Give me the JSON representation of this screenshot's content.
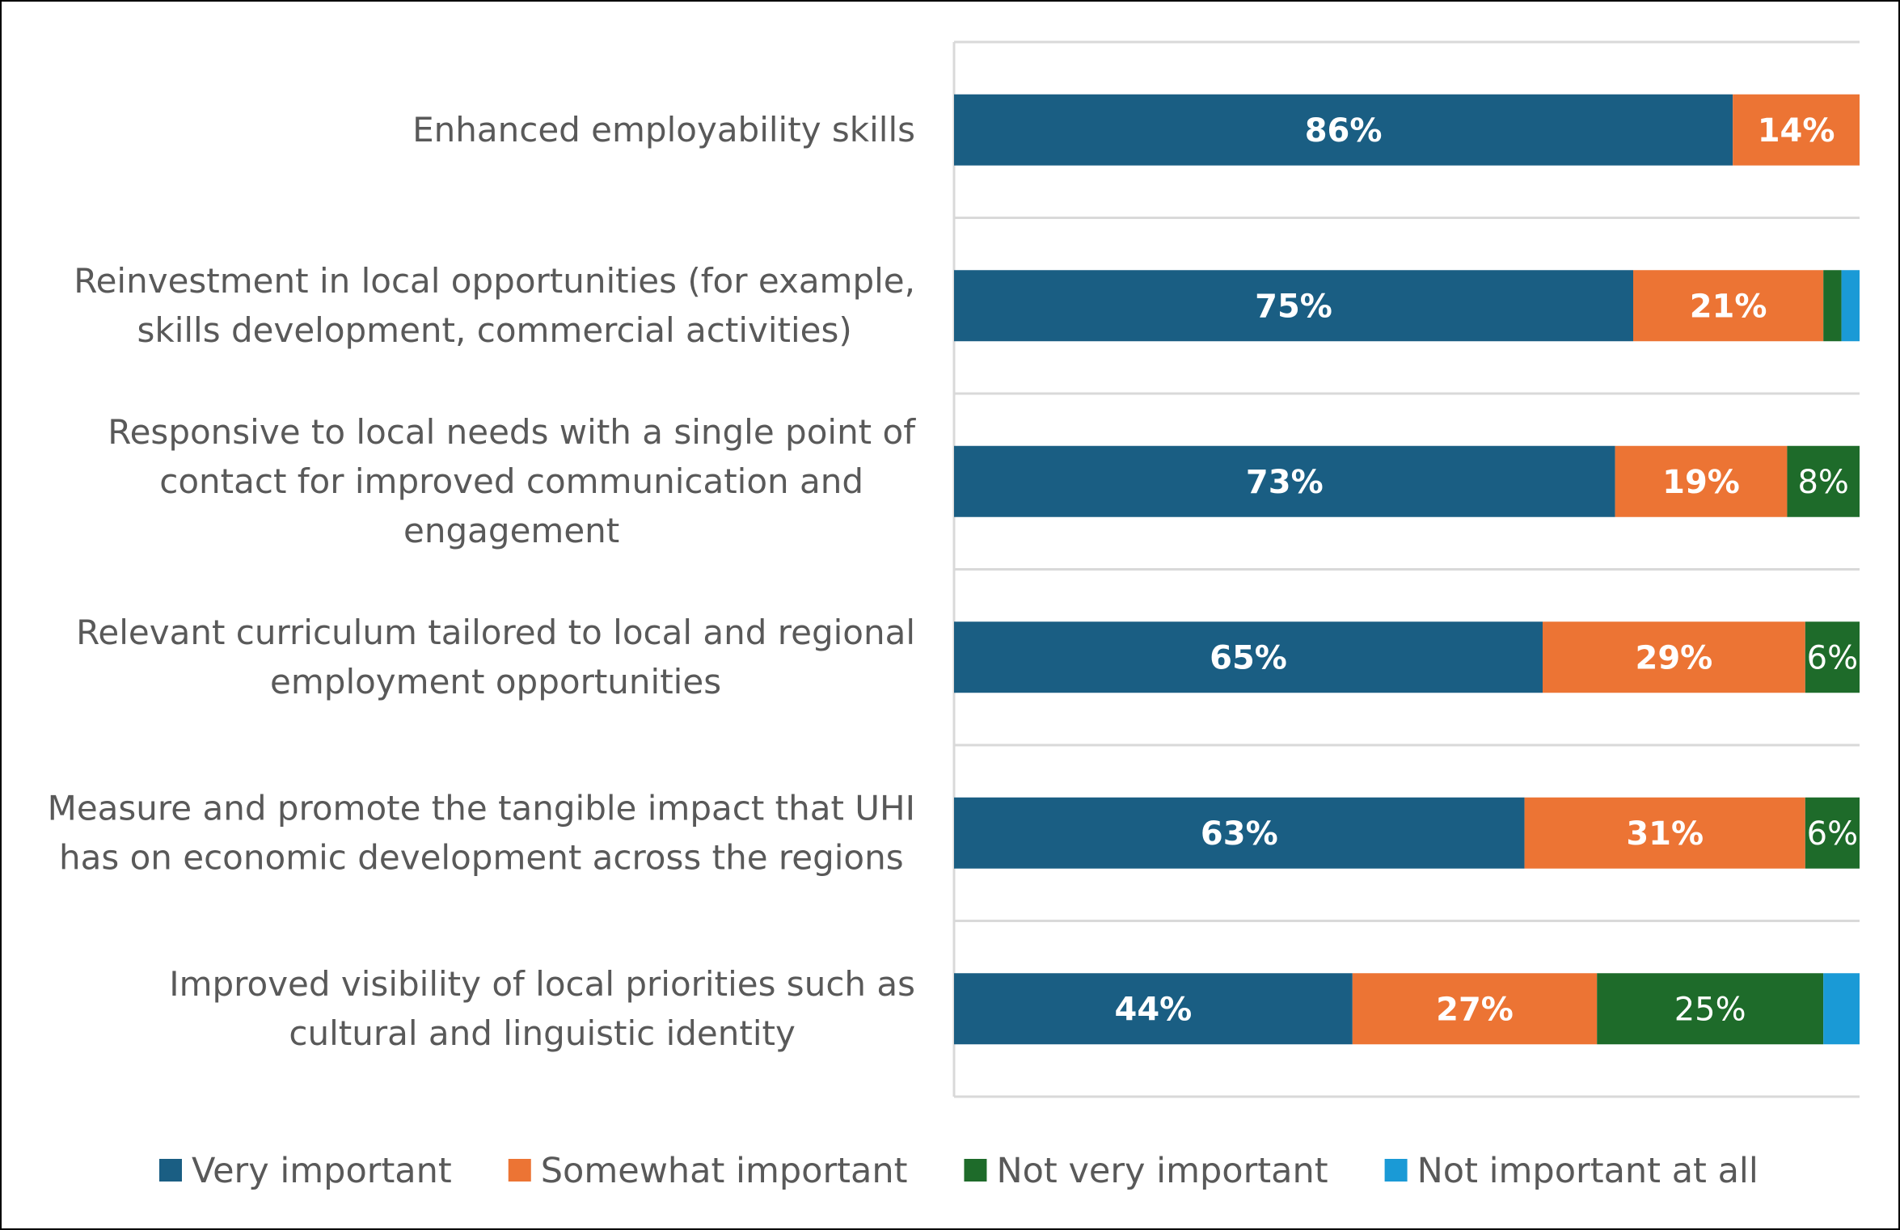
{
  "chart_data": {
    "type": "bar",
    "orientation": "horizontal",
    "stacked": true,
    "title": "",
    "xlabel": "",
    "ylabel": "",
    "xlim": [
      0,
      100
    ],
    "grid": "horizontal separators between categories",
    "legend_position": "bottom",
    "categories": [
      {
        "lines": [
          "Enhanced employability skills"
        ]
      },
      {
        "lines": [
          "Reinvestment in local opportunities (for example,",
          "skills development, commercial activities)"
        ]
      },
      {
        "lines": [
          "Responsive to local needs with a single point of",
          "contact for improved communication and",
          "engagement"
        ]
      },
      {
        "lines": [
          "Relevant curriculum tailored to local and regional",
          "employment opportunities"
        ]
      },
      {
        "lines": [
          "Measure and promote the tangible impact that UHI",
          "has on economic development across the regions"
        ]
      },
      {
        "lines": [
          "Improved visibility of local priorities such as",
          "cultural and linguistic identity"
        ]
      }
    ],
    "series": [
      {
        "name": "Very important",
        "color": "#1a5e83",
        "values": [
          86,
          75,
          73,
          65,
          63,
          44
        ],
        "labels": [
          "86%",
          "75%",
          "73%",
          "65%",
          "63%",
          "44%"
        ],
        "bold": true
      },
      {
        "name": "Somewhat important",
        "color": "#ec7434",
        "values": [
          14,
          21,
          19,
          29,
          31,
          27
        ],
        "labels": [
          "14%",
          "21%",
          "19%",
          "29%",
          "31%",
          "27%"
        ],
        "bold": true
      },
      {
        "name": "Not very important",
        "color": "#1e6b2a",
        "values": [
          0,
          2,
          8,
          6,
          6,
          25
        ],
        "labels": [
          "",
          "",
          "8%",
          "6%",
          "6%",
          "25%"
        ],
        "bold": false
      },
      {
        "name": "Not important at all",
        "color": "#1a9ad6",
        "values": [
          0,
          2,
          0,
          0,
          0,
          4
        ],
        "labels": [
          "",
          "",
          "",
          "",
          "",
          ""
        ],
        "bold": false
      }
    ]
  }
}
